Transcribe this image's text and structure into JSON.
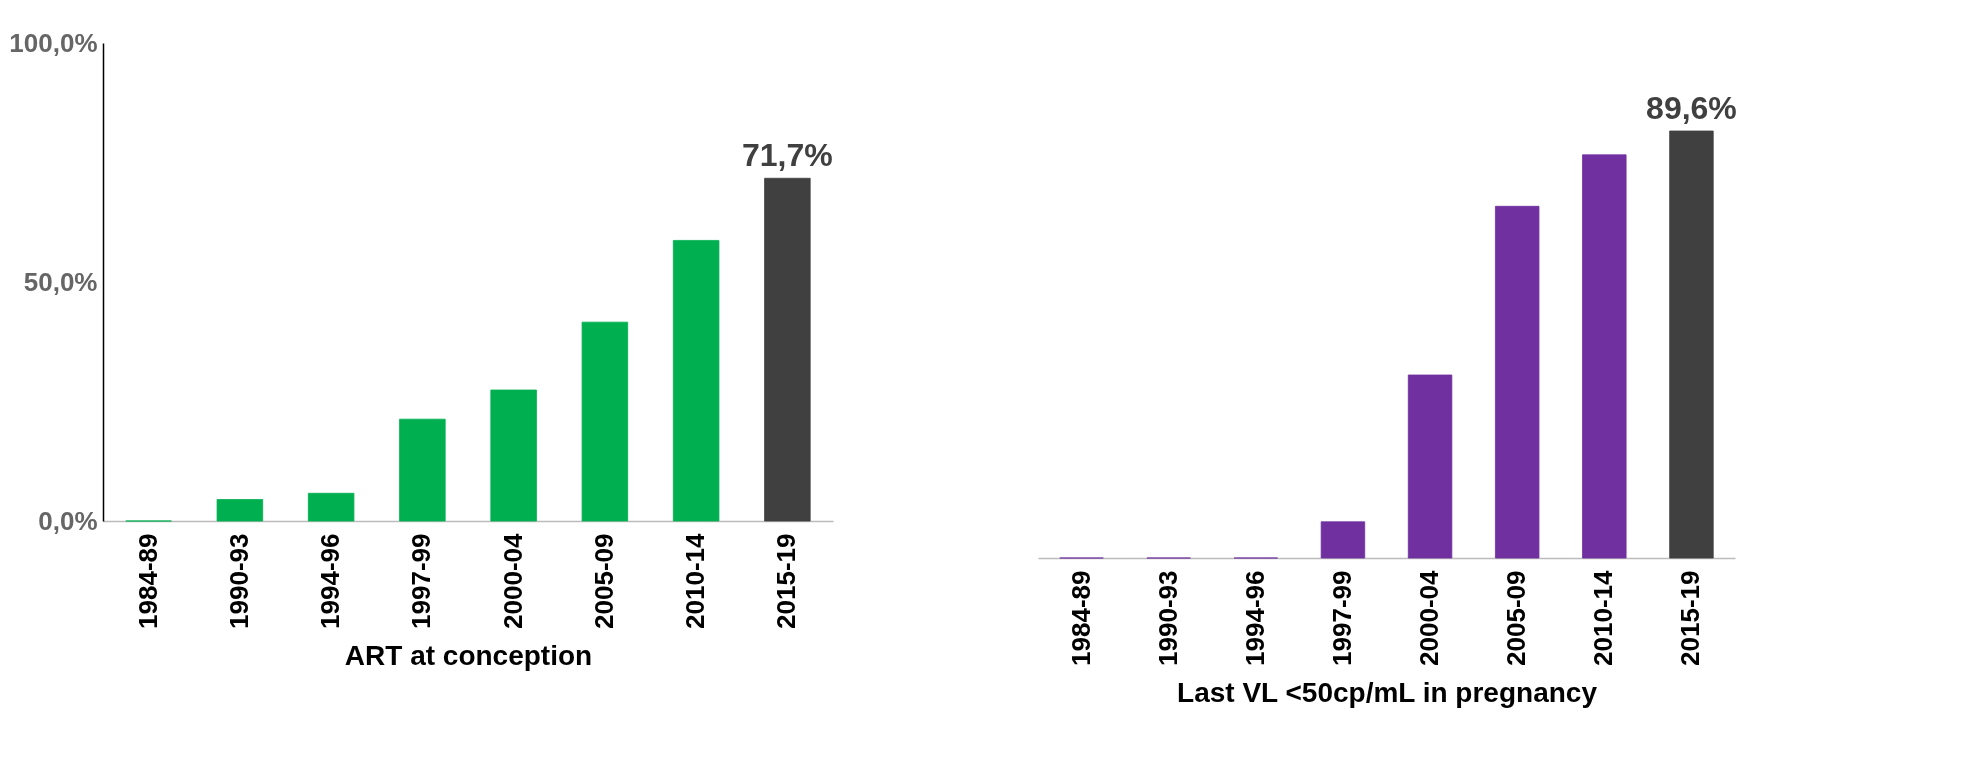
{
  "chart_data": [
    {
      "type": "bar",
      "xlabel": "ART at conception",
      "categories": [
        "1984-89",
        "1990-93",
        "1994-96",
        "1997-99",
        "2000-04",
        "2005-09",
        "2010-14",
        "2015-19"
      ],
      "values": [
        0,
        4.5,
        5.8,
        21.3,
        27.4,
        41.6,
        58.7,
        71.7
      ],
      "colors": [
        "#00b050",
        "#00b050",
        "#00b050",
        "#00b050",
        "#00b050",
        "#00b050",
        "#00b050",
        "#404040"
      ],
      "value_labels": [
        null,
        null,
        null,
        null,
        null,
        null,
        null,
        "71,7%"
      ],
      "ylim": [
        0,
        100
      ],
      "yticks": [
        {
          "value": 0,
          "label": "0,0%"
        },
        {
          "value": 50,
          "label": "50,0%"
        },
        {
          "value": 100,
          "label": "100,0%"
        }
      ],
      "grid": false
    },
    {
      "type": "bar",
      "xlabel": "Last VL <50cp/mL in pregnancy",
      "categories": [
        "1984-89",
        "1990-93",
        "1994-96",
        "1997-99",
        "2000-04",
        "2005-09",
        "2010-14",
        "2015-19"
      ],
      "values": [
        0,
        0,
        0,
        7.6,
        38.4,
        73.8,
        84.6,
        89.6
      ],
      "colors": [
        "#7030a0",
        "#7030a0",
        "#7030a0",
        "#7030a0",
        "#7030a0",
        "#7030a0",
        "#7030a0",
        "#404040"
      ],
      "value_labels": [
        null,
        null,
        null,
        null,
        null,
        null,
        null,
        "89,6%"
      ],
      "tick_labels": "x",
      "grid": false
    }
  ]
}
